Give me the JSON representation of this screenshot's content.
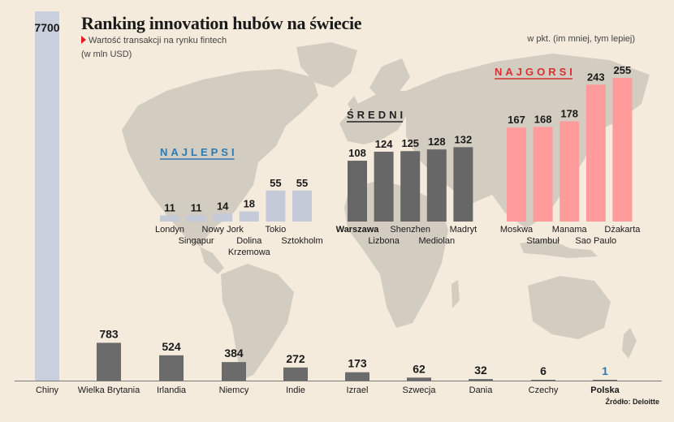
{
  "header": {
    "title": "Ranking innovation hubów na świecie",
    "subtitle": "Wartość transakcji na rynku fintech (w mln USD)",
    "unit_note": "w pkt. (im mniej, tym lepiej)"
  },
  "footer": {
    "source": "Źródło: Deloitte"
  },
  "colors": {
    "background": "#f5ebdc",
    "map": "#d3cdc1",
    "china_bar": "#c9cfdd",
    "value_bar": "#6b6b6b",
    "best": "#c5cad8",
    "middle": "#676767",
    "worst": "#ff9b9b",
    "best_label": "#2b7ab4",
    "worst_label": "#d63030",
    "poland_value": "#2b7ab4"
  },
  "chart_data": [
    {
      "type": "bar",
      "categories": [
        "Chiny",
        "Wielka Brytania",
        "Irlandia",
        "Niemcy",
        "Indie",
        "Izrael",
        "Szwecja",
        "Dania",
        "Czechy",
        "Polska"
      ],
      "values": [
        7700,
        783,
        524,
        384,
        272,
        173,
        62,
        32,
        6,
        1
      ],
      "highlight": "Polska"
    },
    {
      "type": "bar",
      "groups": [
        {
          "name": "NAJLEPSI",
          "categories": [
            "Londyn",
            "Singapur",
            "Nowy Jork",
            "Dolina Krzemowa",
            "Tokio",
            "Sztokholm"
          ],
          "values": [
            11,
            11,
            14,
            18,
            55,
            55
          ]
        },
        {
          "name": "ŚREDNI",
          "categories": [
            "Warszawa",
            "Lizbona",
            "Shenzhen",
            "Mediolan",
            "Madryt"
          ],
          "values": [
            108,
            124,
            125,
            128,
            132
          ]
        },
        {
          "name": "NAJGORSI",
          "categories": [
            "Moskwa",
            "Stambuł",
            "Manama",
            "Sao Paulo",
            "Dżakarta"
          ],
          "values": [
            167,
            168,
            178,
            243,
            255
          ]
        }
      ],
      "highlight": "Warszawa"
    }
  ]
}
